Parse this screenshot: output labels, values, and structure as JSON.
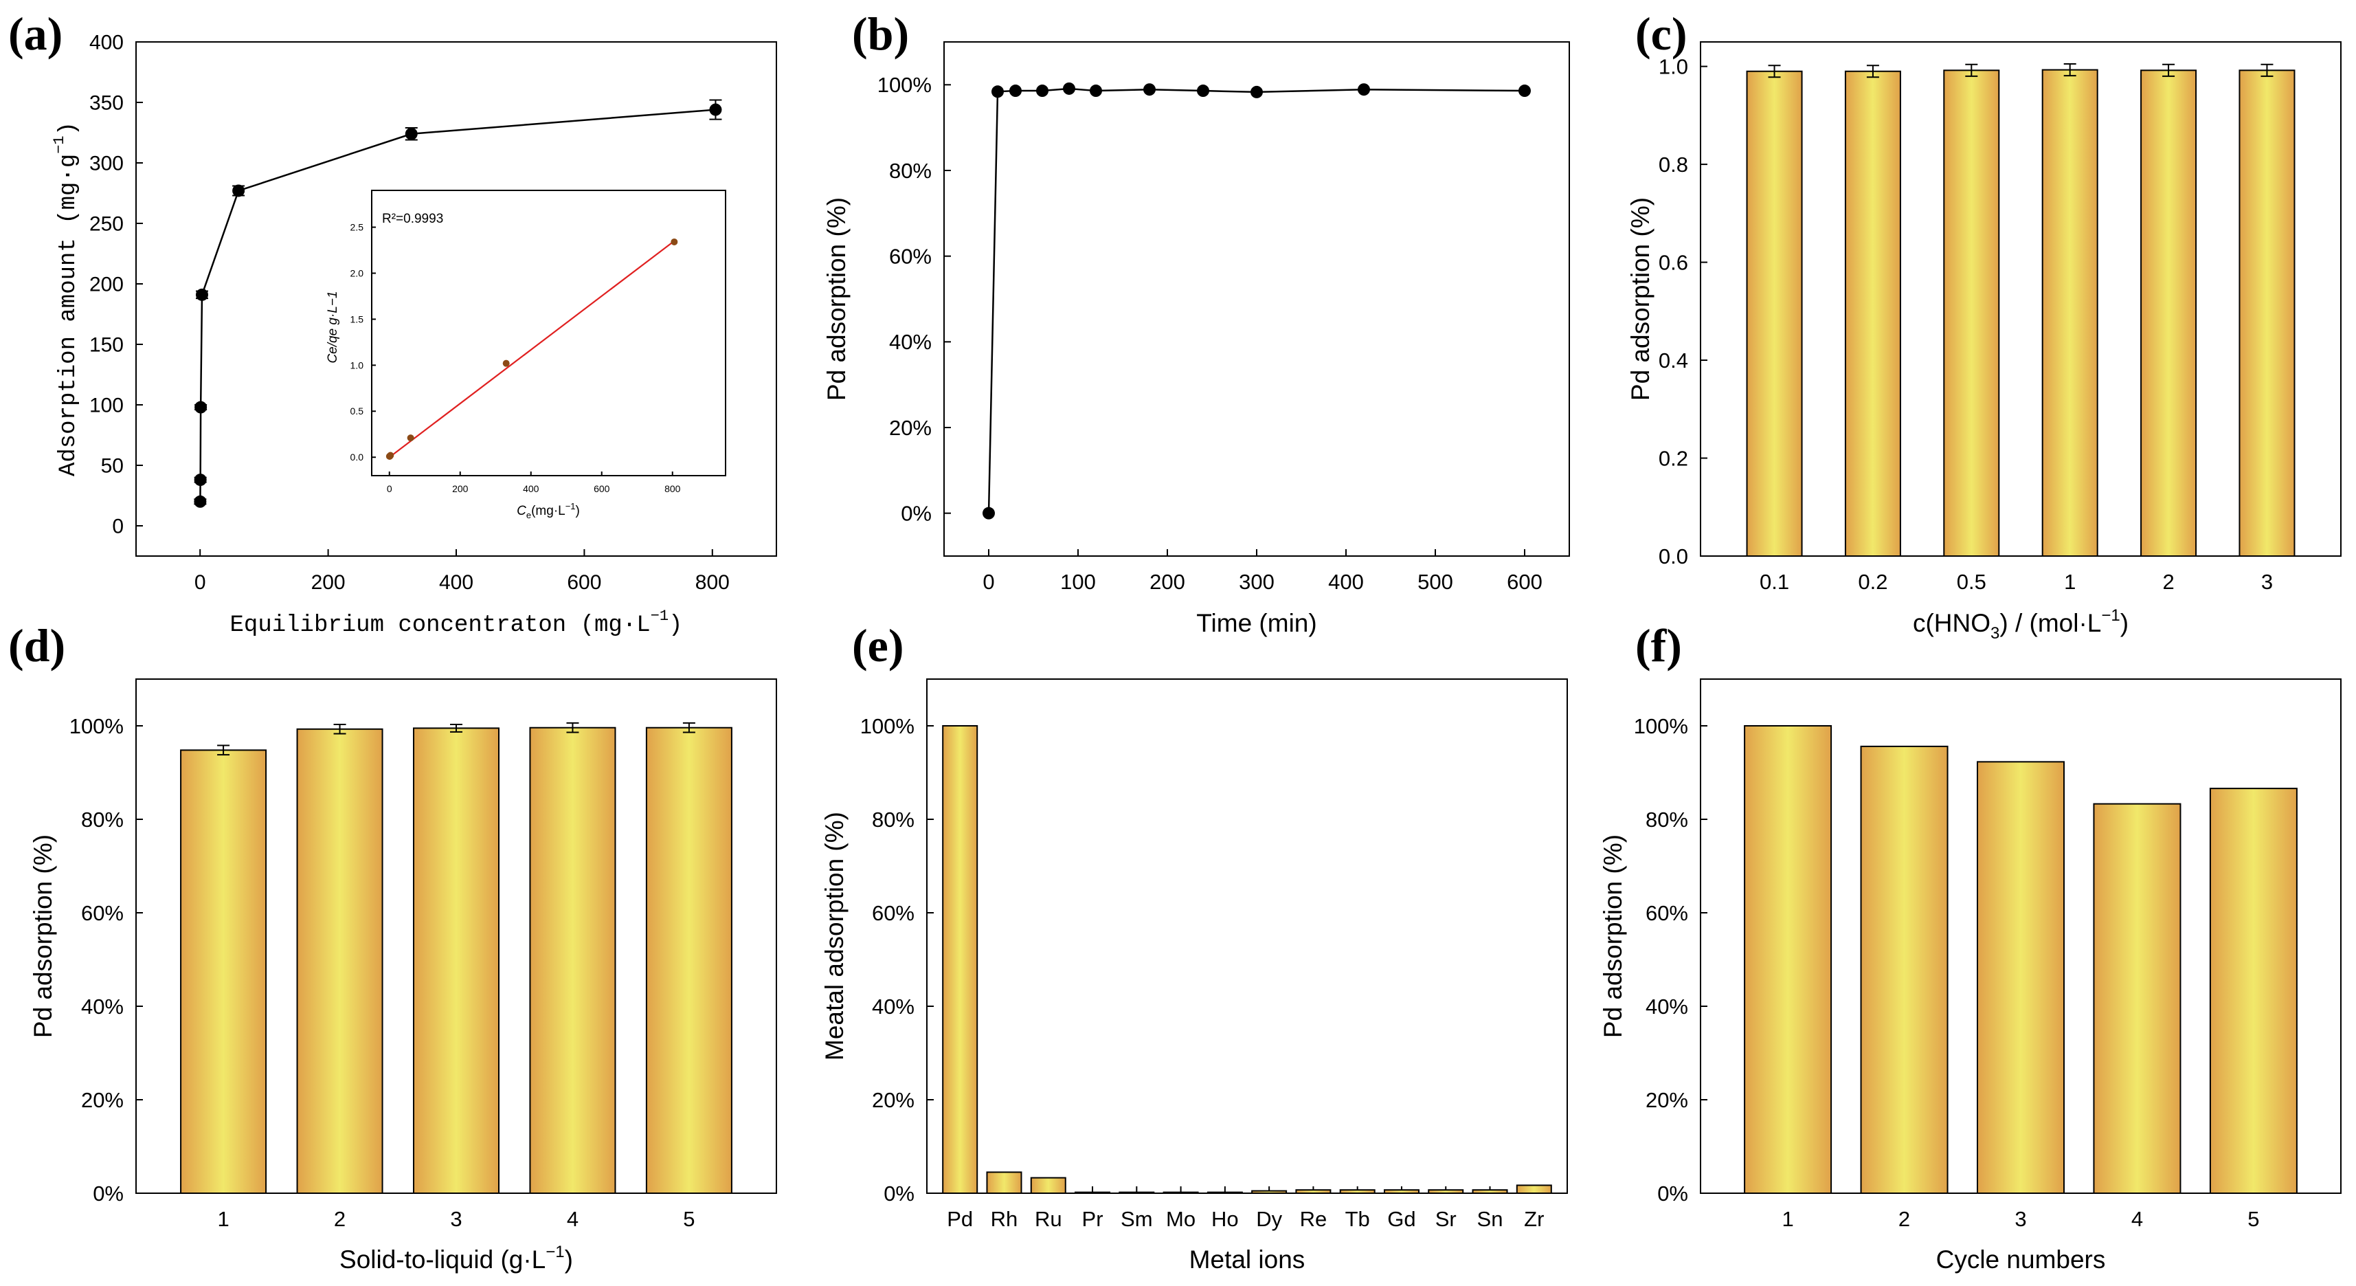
{
  "colors": {
    "bar_edge": "#e0a24a",
    "bar_mid": "#f1e86a",
    "marker": "#000000",
    "fit_line": "#e02020",
    "inset_marker": "#8b4a16"
  },
  "chart_data": [
    {
      "panel": "(a)",
      "type": "line",
      "xlabel_main": "Equilibrium concentraton (mg·L",
      "xlabel_sup": "−1",
      "xlabel_end": ")",
      "ylabel_main": "Adsorption amount (mg·g",
      "ylabel_sup": "−1",
      "ylabel_end": ")",
      "xlim": [
        -100,
        900
      ],
      "ylim": [
        -25,
        400
      ],
      "xticks": [
        0,
        200,
        400,
        600,
        800
      ],
      "yticks": [
        0,
        50,
        100,
        150,
        200,
        250,
        300,
        350,
        400
      ],
      "x": [
        0.2,
        0.5,
        1,
        3,
        60,
        330,
        805
      ],
      "y": [
        20,
        38,
        98,
        191,
        277,
        324,
        344
      ],
      "yerr": [
        2,
        2,
        2,
        3,
        4,
        5,
        8
      ],
      "inset": {
        "annotation": "R²=0.9993",
        "xlabel_main": "C",
        "xlabel_sub": "e",
        "xlabel_end": "(mg·L",
        "xlabel_sup": "−1",
        "xlabel_close": ")",
        "ylabel": "Ce/qe g·L−1",
        "xlim": [
          -50,
          950
        ],
        "ylim": [
          -0.2,
          2.9
        ],
        "xticks": [
          0,
          200,
          400,
          600,
          800
        ],
        "yticks": [
          "0.0",
          "0.5",
          "1.0",
          "1.5",
          "2.0",
          "2.5"
        ],
        "x": [
          0.2,
          1,
          3,
          60,
          330,
          805
        ],
        "y": [
          0.01,
          0.01,
          0.02,
          0.21,
          1.02,
          2.34
        ],
        "fit_x": [
          0,
          805
        ],
        "fit_y": [
          0.0,
          2.35
        ]
      }
    },
    {
      "panel": "(b)",
      "type": "line",
      "xlabel": "Time (min)",
      "ylabel": "Pd adsorption (%)",
      "xlim": [
        -50,
        650
      ],
      "ylim": [
        -0.1,
        1.1
      ],
      "xticks": [
        0,
        100,
        200,
        300,
        400,
        500,
        600
      ],
      "yticks": [
        "0%",
        "20%",
        "40%",
        "60%",
        "80%",
        "100%"
      ],
      "x": [
        0,
        10,
        30,
        60,
        90,
        120,
        180,
        240,
        300,
        420,
        600
      ],
      "y": [
        0,
        0.984,
        0.986,
        0.986,
        0.991,
        0.986,
        0.989,
        0.986,
        0.983,
        0.989,
        0.986
      ]
    },
    {
      "panel": "(c)",
      "type": "bar",
      "xlabel_main": "c(HNO",
      "xlabel_sub": "3",
      "xlabel_end": ") / (mol·L",
      "xlabel_sup": "−1",
      "xlabel_close": ")",
      "ylabel": "Pd adsorption (%)",
      "ylim": [
        0,
        1.05
      ],
      "yticks": [
        "0.0",
        "0.2",
        "0.4",
        "0.6",
        "0.8",
        "1.0"
      ],
      "categories": [
        "0.1",
        "0.2",
        "0.5",
        "1",
        "2",
        "3"
      ],
      "values": [
        0.99,
        0.99,
        0.992,
        0.993,
        0.992,
        0.992
      ],
      "yerr": [
        0.012,
        0.012,
        0.012,
        0.012,
        0.012,
        0.012
      ]
    },
    {
      "panel": "(d)",
      "type": "bar",
      "xlabel_main": "Solid-to-liquid (g·L",
      "xlabel_sup": "−1",
      "xlabel_end": ")",
      "ylabel": "Pd adsorption (%)",
      "ylim": [
        0,
        1.1
      ],
      "yticks": [
        "0%",
        "20%",
        "40%",
        "60%",
        "80%",
        "100%"
      ],
      "categories": [
        "1",
        "2",
        "3",
        "4",
        "5"
      ],
      "values": [
        0.948,
        0.993,
        0.995,
        0.996,
        0.996
      ],
      "yerr": [
        0.01,
        0.01,
        0.008,
        0.01,
        0.01
      ]
    },
    {
      "panel": "(e)",
      "type": "bar",
      "xlabel": "Metal ions",
      "ylabel": "Meatal adsorption (%)",
      "ylim": [
        0,
        1.1
      ],
      "yticks": [
        "0%",
        "20%",
        "40%",
        "60%",
        "80%",
        "100%"
      ],
      "categories": [
        "Pd",
        "Rh",
        "Ru",
        "Pr",
        "Sm",
        "Mo",
        "Ho",
        "Dy",
        "Re",
        "Tb",
        "Gd",
        "Sr",
        "Sn",
        "Zr"
      ],
      "values": [
        1.0,
        0.045,
        0.033,
        0.002,
        0.002,
        0.002,
        0.002,
        0.005,
        0.007,
        0.007,
        0.007,
        0.007,
        0.007,
        0.017
      ]
    },
    {
      "panel": "(f)",
      "type": "bar",
      "xlabel": "Cycle numbers",
      "ylabel": "Pd adsorption (%)",
      "ylim": [
        0,
        1.1
      ],
      "yticks": [
        "0%",
        "20%",
        "40%",
        "60%",
        "80%",
        "100%"
      ],
      "categories": [
        "1",
        "2",
        "3",
        "4",
        "5"
      ],
      "values": [
        1.0,
        0.956,
        0.923,
        0.833,
        0.866
      ]
    }
  ]
}
